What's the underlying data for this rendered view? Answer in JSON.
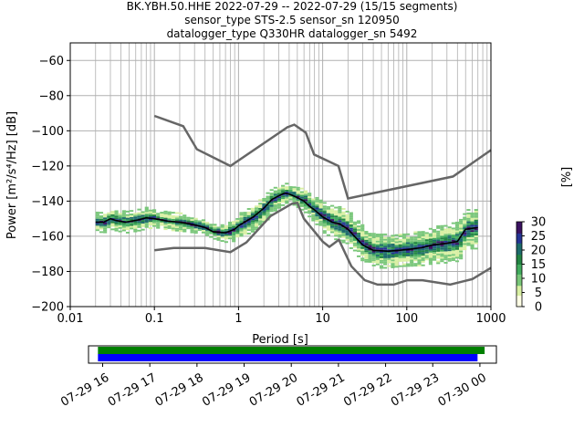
{
  "chart_data": {
    "type": "heatmap",
    "title_lines": [
      "BK.YBH.50.HHE   2022-07-29 -- 2022-07-29  (15/15 segments)",
      "sensor_type STS-2.5 sensor_sn 120950",
      "datalogger_type Q330HR datalogger_sn 5492"
    ],
    "xlabel": "Period [s]",
    "ylabel": "Power [m²/s⁴/Hz] [dB]",
    "x_scale": "log",
    "xlim": [
      0.01,
      1000
    ],
    "ylim": [
      -200,
      -50
    ],
    "x_ticks": [
      "0.01",
      "0.1",
      "1",
      "10",
      "100",
      "1000"
    ],
    "y_ticks": [
      "−200",
      "−180",
      "−160",
      "−140",
      "−120",
      "−100",
      "−80",
      "−60"
    ],
    "grid": true,
    "colorbar": {
      "label": "[%]",
      "ticks": [
        "0",
        "5",
        "10",
        "15",
        "20",
        "25",
        "30"
      ],
      "range": [
        0,
        30
      ],
      "colors": [
        "#ffffe5",
        "#d9f0a3",
        "#78c679",
        "#41ab5d",
        "#238443",
        "#1d6b6b",
        "#253494",
        "#3b1261"
      ]
    },
    "noise_models": {
      "color": "#666666",
      "high": [
        [
          0.1,
          -91.5
        ],
        [
          0.22,
          -97.4
        ],
        [
          0.32,
          -110.5
        ],
        [
          0.8,
          -120
        ],
        [
          3.8,
          -98
        ],
        [
          4.6,
          -96.5
        ],
        [
          6.3,
          -101
        ],
        [
          7.9,
          -113.5
        ],
        [
          15.4,
          -120
        ],
        [
          20,
          -138.5
        ],
        [
          354.8,
          -126
        ],
        [
          1000,
          -111
        ]
      ],
      "low": [
        [
          0.1,
          -168
        ],
        [
          0.17,
          -166.7
        ],
        [
          0.4,
          -166.7
        ],
        [
          0.8,
          -169
        ],
        [
          1.24,
          -163.5
        ],
        [
          2.4,
          -148.5
        ],
        [
          4.3,
          -141.5
        ],
        [
          5,
          -141
        ],
        [
          6,
          -150
        ],
        [
          10,
          -163
        ],
        [
          12,
          -166
        ],
        [
          15.6,
          -162
        ],
        [
          21.9,
          -177
        ],
        [
          31.6,
          -185
        ],
        [
          45,
          -187.5
        ],
        [
          70,
          -187.5
        ],
        [
          101,
          -185
        ],
        [
          154,
          -185
        ],
        [
          328,
          -187.5
        ],
        [
          600,
          -184.4
        ],
        [
          1000,
          -178
        ]
      ]
    },
    "mode_curve": {
      "color": "#000000",
      "points": [
        [
          0.02,
          -152
        ],
        [
          0.025,
          -152
        ],
        [
          0.03,
          -150
        ],
        [
          0.035,
          -151
        ],
        [
          0.045,
          -152
        ],
        [
          0.06,
          -151
        ],
        [
          0.08,
          -149.5
        ],
        [
          0.1,
          -150
        ],
        [
          0.15,
          -151.5
        ],
        [
          0.2,
          -152
        ],
        [
          0.3,
          -153.5
        ],
        [
          0.4,
          -155
        ],
        [
          0.5,
          -157.5
        ],
        [
          0.7,
          -158
        ],
        [
          0.9,
          -156
        ],
        [
          1,
          -154
        ],
        [
          1.5,
          -149
        ],
        [
          2,
          -144
        ],
        [
          2.5,
          -139
        ],
        [
          3,
          -137
        ],
        [
          3.5,
          -135.5
        ],
        [
          4,
          -136
        ],
        [
          5,
          -138
        ],
        [
          6,
          -140
        ],
        [
          7,
          -143
        ],
        [
          8,
          -145
        ],
        [
          10,
          -149
        ],
        [
          13,
          -152
        ],
        [
          16,
          -153
        ],
        [
          20,
          -156
        ],
        [
          25,
          -161
        ],
        [
          30,
          -165
        ],
        [
          40,
          -168
        ],
        [
          60,
          -168.5
        ],
        [
          80,
          -168
        ],
        [
          100,
          -167.5
        ],
        [
          150,
          -166.5
        ],
        [
          200,
          -165
        ],
        [
          300,
          -164
        ],
        [
          400,
          -163
        ],
        [
          500,
          -156
        ],
        [
          700,
          -155
        ]
      ]
    },
    "spread_series": {
      "name": "",
      "values": [
        [
          0.02,
          5.5
        ],
        [
          0.03,
          6
        ],
        [
          0.05,
          6
        ],
        [
          0.08,
          6
        ],
        [
          0.1,
          5
        ],
        [
          0.2,
          5
        ],
        [
          0.5,
          4
        ],
        [
          1,
          7
        ],
        [
          2,
          8
        ],
        [
          4,
          5
        ],
        [
          7,
          7
        ],
        [
          10,
          9
        ],
        [
          20,
          10
        ],
        [
          40,
          10
        ],
        [
          80,
          9
        ],
        [
          150,
          10
        ],
        [
          300,
          11
        ],
        [
          500,
          11
        ],
        [
          700,
          12
        ]
      ]
    },
    "time_axis": {
      "ticks": [
        "07-29 16",
        "07-29 17",
        "07-29 18",
        "07-29 19",
        "07-29 20",
        "07-29 21",
        "07-29 22",
        "07-29 23",
        "07-30 00"
      ],
      "start_hour": 15.7,
      "end_hour": 24.35,
      "bars": [
        {
          "color": "#008000",
          "from": 15.9,
          "to": 24.1
        },
        {
          "color": "#0000ff",
          "from": 15.9,
          "to": 23.95
        }
      ]
    }
  }
}
